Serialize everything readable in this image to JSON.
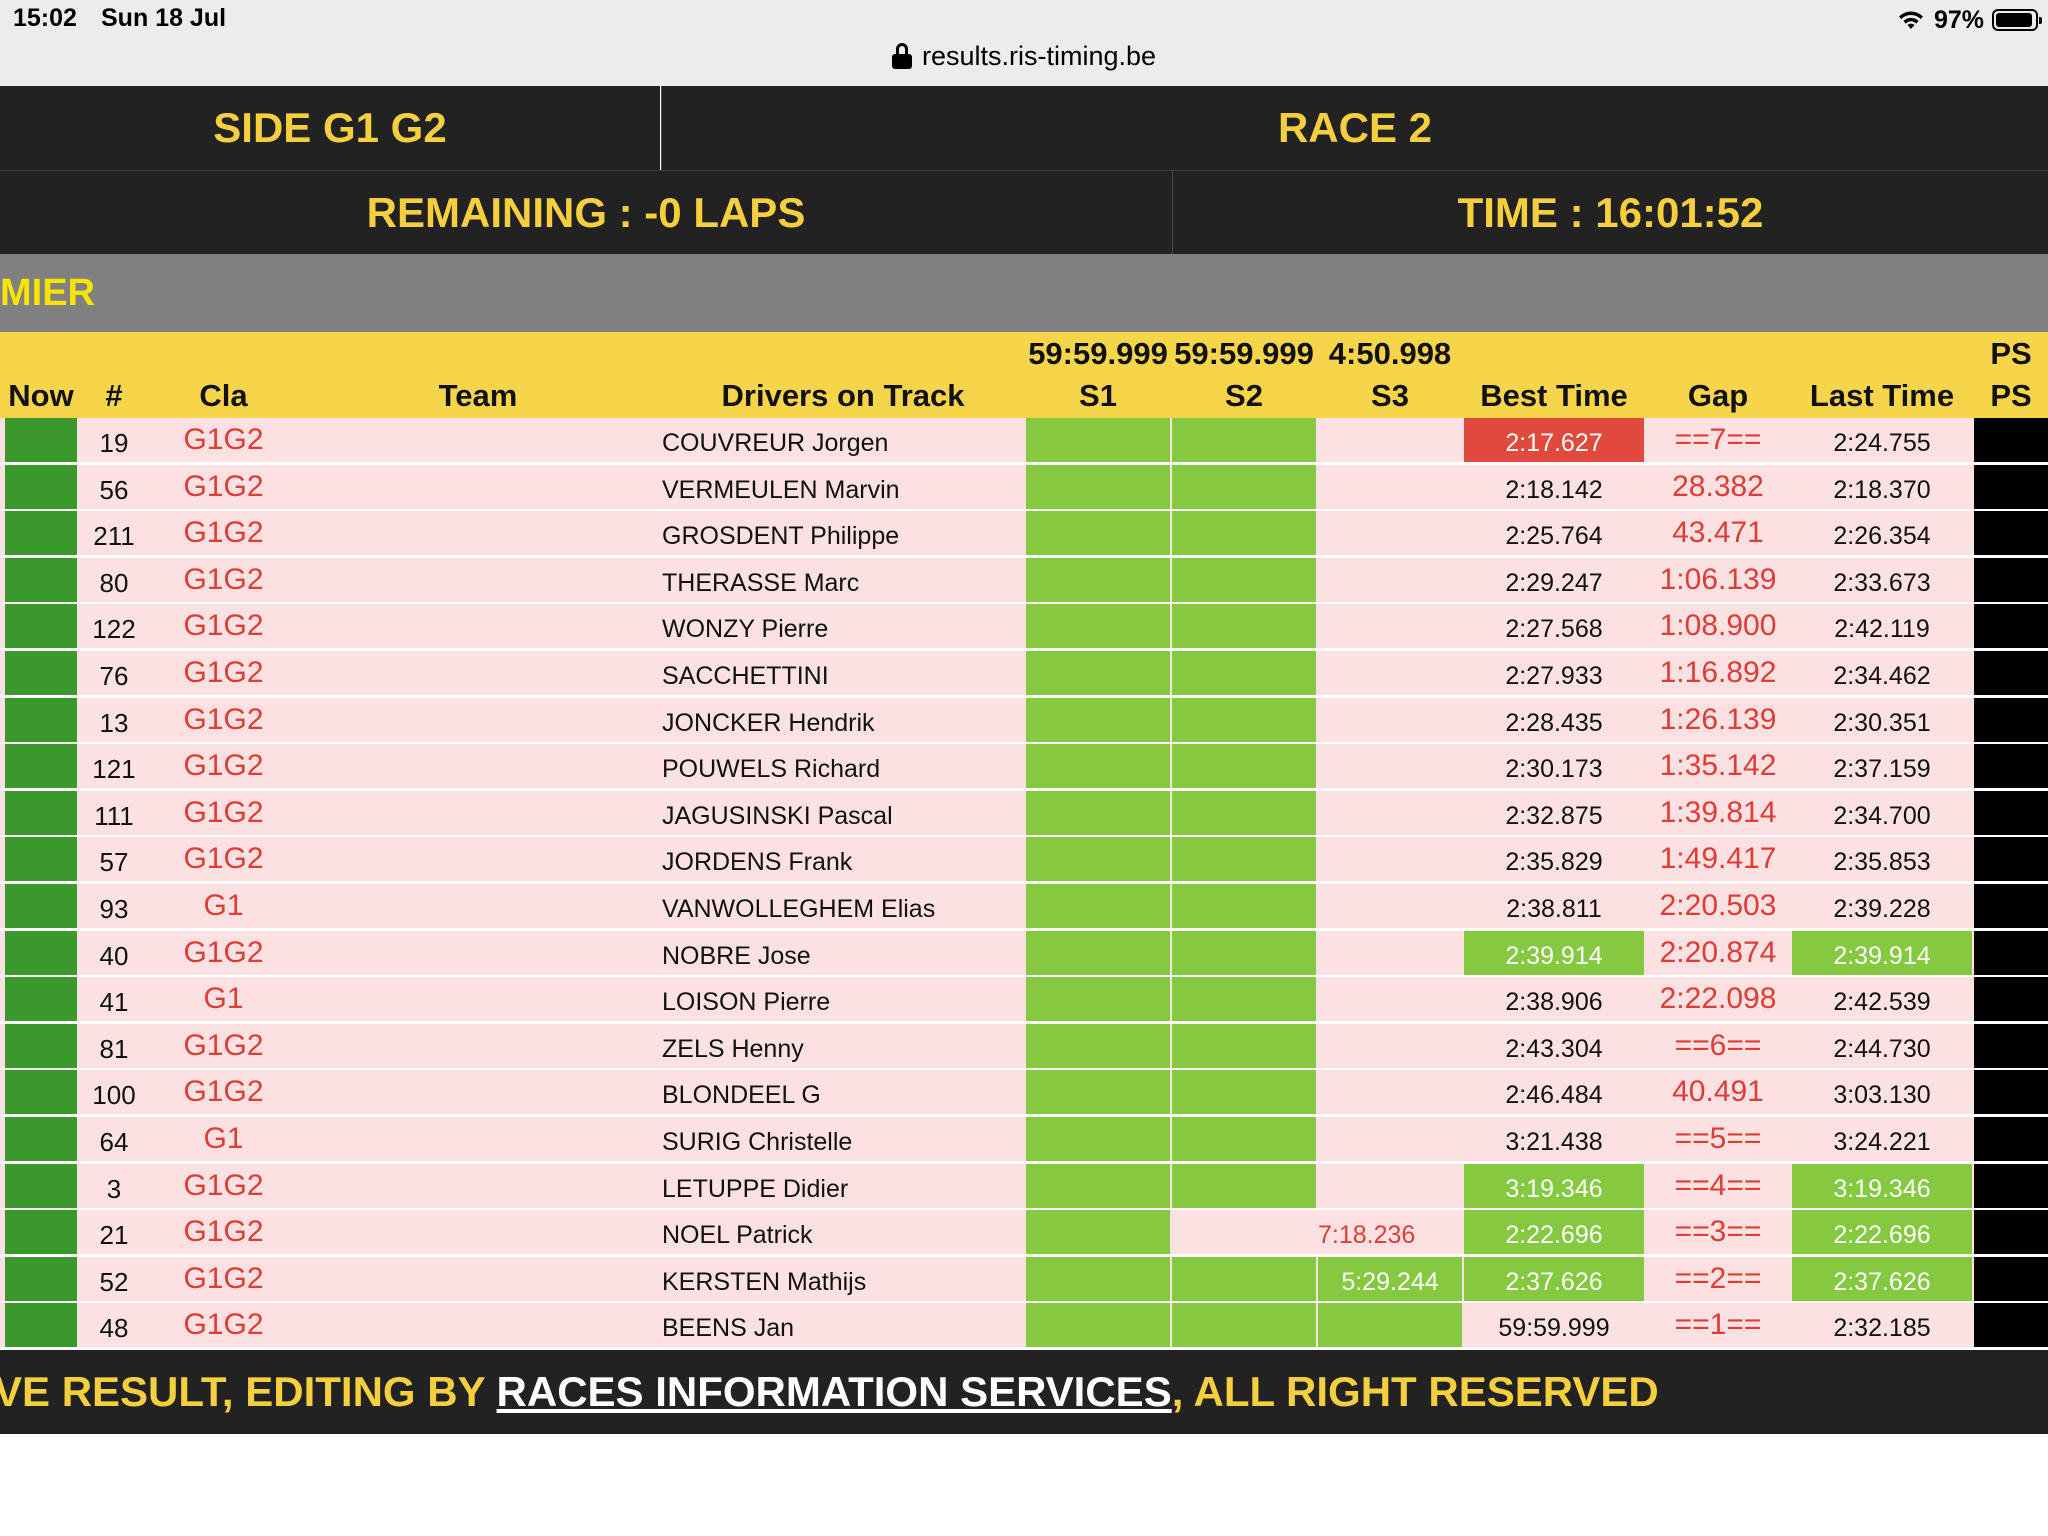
{
  "status_bar": {
    "time": "15:02",
    "date": "Sun 18 Jul",
    "battery": "97%"
  },
  "browser": {
    "url": "results.ris-timing.be"
  },
  "header": {
    "session": "SIDE G1 G2",
    "race": "RACE 2",
    "remaining": "REMAINING : -0 LAPS",
    "time": "TIME : 16:01:52"
  },
  "section_title": "MIER",
  "table": {
    "columns": {
      "now": "Now",
      "num": "#",
      "cla": "Cla",
      "team": "Team",
      "drivers": "Drivers on Track",
      "s1": "S1",
      "s2": "S2",
      "s3": "S3",
      "best": "Best Time",
      "gap": "Gap",
      "last": "Last Time",
      "ps": "PS"
    },
    "best_sectors": {
      "s1": "59:59.999",
      "s2": "59:59.999",
      "s3": "4:50.998",
      "ps": "PS"
    },
    "rows": [
      {
        "num": "19",
        "cla": "G1G2",
        "team": "",
        "driver": "COUVREUR Jorgen",
        "s3": "",
        "best": "2:17.627",
        "gap": "==7==",
        "last": "2:24.755"
      },
      {
        "num": "56",
        "cla": "G1G2",
        "team": "",
        "driver": "VERMEULEN Marvin",
        "s3": "",
        "best": "2:18.142",
        "gap": "28.382",
        "last": "2:18.370"
      },
      {
        "num": "211",
        "cla": "G1G2",
        "team": "",
        "driver": "GROSDENT Philippe",
        "s3": "",
        "best": "2:25.764",
        "gap": "43.471",
        "last": "2:26.354"
      },
      {
        "num": "80",
        "cla": "G1G2",
        "team": "",
        "driver": "THERASSE Marc",
        "s3": "",
        "best": "2:29.247",
        "gap": "1:06.139",
        "last": "2:33.673"
      },
      {
        "num": "122",
        "cla": "G1G2",
        "team": "",
        "driver": "WONZY Pierre",
        "s3": "",
        "best": "2:27.568",
        "gap": "1:08.900",
        "last": "2:42.119"
      },
      {
        "num": "76",
        "cla": "G1G2",
        "team": "",
        "driver": "SACCHETTINI",
        "s3": "",
        "best": "2:27.933",
        "gap": "1:16.892",
        "last": "2:34.462"
      },
      {
        "num": "13",
        "cla": "G1G2",
        "team": "",
        "driver": "JONCKER Hendrik",
        "s3": "",
        "best": "2:28.435",
        "gap": "1:26.139",
        "last": "2:30.351"
      },
      {
        "num": "121",
        "cla": "G1G2",
        "team": "",
        "driver": "POUWELS Richard",
        "s3": "",
        "best": "2:30.173",
        "gap": "1:35.142",
        "last": "2:37.159"
      },
      {
        "num": "111",
        "cla": "G1G2",
        "team": "",
        "driver": "JAGUSINSKI Pascal",
        "s3": "",
        "best": "2:32.875",
        "gap": "1:39.814",
        "last": "2:34.700"
      },
      {
        "num": "57",
        "cla": "G1G2",
        "team": "",
        "driver": "JORDENS Frank",
        "s3": "",
        "best": "2:35.829",
        "gap": "1:49.417",
        "last": "2:35.853"
      },
      {
        "num": "93",
        "cla": "G1",
        "team": "",
        "driver": "VANWOLLEGHEM Elias",
        "s3": "",
        "best": "2:38.811",
        "gap": "2:20.503",
        "last": "2:39.228"
      },
      {
        "num": "40",
        "cla": "G1G2",
        "team": "",
        "driver": "NOBRE Jose",
        "s3": "",
        "best": "2:39.914",
        "gap": "2:20.874",
        "last": "2:39.914"
      },
      {
        "num": "41",
        "cla": "G1",
        "team": "",
        "driver": "LOISON Pierre",
        "s3": "",
        "best": "2:38.906",
        "gap": "2:22.098",
        "last": "2:42.539"
      },
      {
        "num": "81",
        "cla": "G1G2",
        "team": "",
        "driver": "ZELS Henny",
        "s3": "",
        "best": "2:43.304",
        "gap": "==6==",
        "last": "2:44.730"
      },
      {
        "num": "100",
        "cla": "G1G2",
        "team": "",
        "driver": "BLONDEEL G",
        "s3": "",
        "best": "2:46.484",
        "gap": "40.491",
        "last": "3:03.130"
      },
      {
        "num": "64",
        "cla": "G1",
        "team": "",
        "driver": "SURIG Christelle",
        "s3": "",
        "best": "3:21.438",
        "gap": "==5==",
        "last": "3:24.221"
      },
      {
        "num": "3",
        "cla": "G1G2",
        "team": "",
        "driver": "LETUPPE Didier",
        "s3": "",
        "best": "3:19.346",
        "gap": "==4==",
        "last": "3:19.346"
      },
      {
        "num": "21",
        "cla": "G1G2",
        "team": "",
        "driver": "NOEL Patrick",
        "s3": "7:18.236",
        "best": "2:22.696",
        "gap": "==3==",
        "last": "2:22.696"
      },
      {
        "num": "52",
        "cla": "G1G2",
        "team": "",
        "driver": "KERSTEN Mathijs",
        "s3": "5:29.244",
        "best": "2:37.626",
        "gap": "==2==",
        "last": "2:37.626"
      },
      {
        "num": "48",
        "cla": "G1G2",
        "team": "",
        "driver": "BEENS Jan",
        "s3": "",
        "best": "59:59.999",
        "gap": "==1==",
        "last": "2:32.185"
      }
    ]
  },
  "footer": {
    "prefix": "VE RESULT, EDITING BY ",
    "link": "RACES INFORMATION SERVICES",
    "suffix": ", ALL RIGHT RESERVED"
  },
  "colors": {
    "header_bg": "#222222",
    "header_text": "#f6cf3e",
    "row_bg": "#fbe1e1",
    "sector_green": "#84c940",
    "now_green": "#3a982c",
    "best_red": "#e04a3c",
    "gap_red": "#e03b35"
  }
}
